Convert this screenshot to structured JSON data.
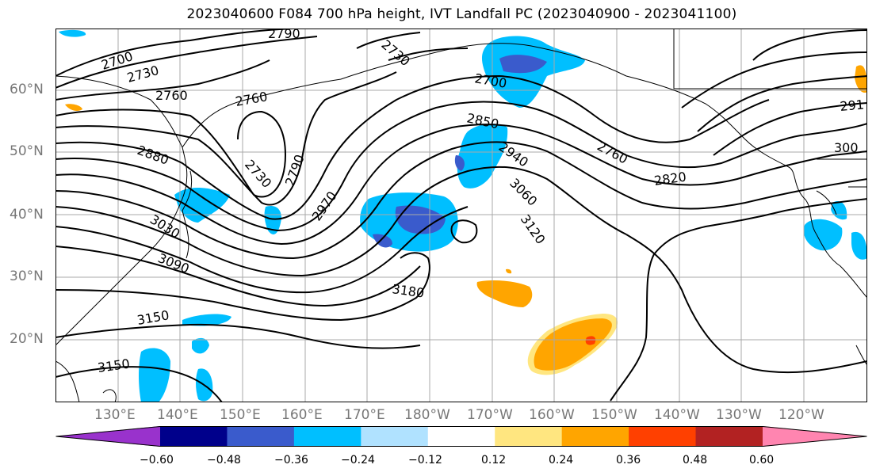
{
  "title": "2023040600 F084 700 hPa height, IVT Landfall PC (2023040900 - 2023041100)",
  "latitude_labels": [
    "60°N",
    "50°N",
    "40°N",
    "30°N",
    "20°N"
  ],
  "longitude_labels": [
    "130°E",
    "140°E",
    "150°E",
    "160°E",
    "170°E",
    "180°W",
    "170°W",
    "160°W",
    "150°W",
    "140°W",
    "130°W",
    "120°W"
  ],
  "contour_labels": [
    "2790",
    "2700",
    "2730",
    "2760",
    "2730",
    "2700",
    "2760",
    "2880",
    "2850",
    "2940",
    "2760",
    "2820",
    "2730",
    "2790",
    "2970",
    "3060",
    "3030",
    "3120",
    "3090",
    "3180",
    "3150",
    "3150",
    "291",
    "300"
  ],
  "colorbar": {
    "ticks": [
      "−0.60",
      "−0.48",
      "−0.36",
      "−0.24",
      "−0.12",
      "0.12",
      "0.24",
      "0.36",
      "0.48",
      "0.60"
    ],
    "colors": [
      "#9932cc",
      "#00008b",
      "#3a5bcc",
      "#00bfff",
      "#b0e2ff",
      "#ffffff",
      "#ffe680",
      "#ffa500",
      "#ff4000",
      "#b22222",
      "#ff85b0"
    ]
  },
  "colors": {
    "contour": "#000000",
    "grid": "#999999",
    "coast": "#000000",
    "shade_light_blue": "#00bfff",
    "shade_mid_blue": "#3a5bcc",
    "shade_orange": "#ffa500",
    "shade_yellow": "#ffe680",
    "shade_red": "#ff4000"
  }
}
